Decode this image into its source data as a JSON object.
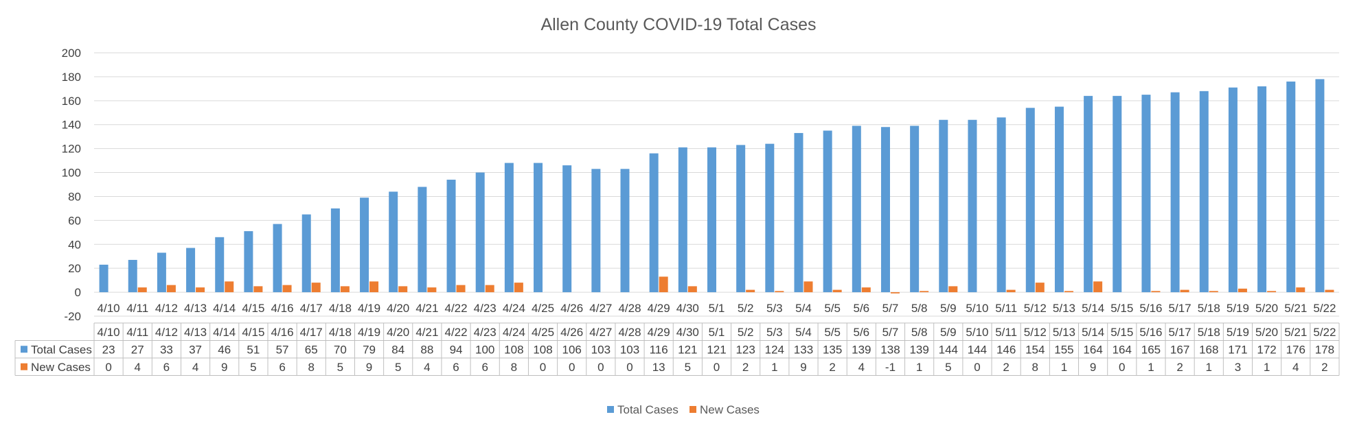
{
  "chart_data": {
    "type": "bar",
    "title": "Allen County COVID-19 Total Cases",
    "xlabel": "",
    "ylabel": "",
    "ylim": [
      -20,
      200
    ],
    "yticks": [
      -20,
      0,
      20,
      40,
      60,
      80,
      100,
      120,
      140,
      160,
      180,
      200
    ],
    "grid": true,
    "legend": "bottom",
    "data_table": true,
    "categories": [
      "4/10",
      "4/11",
      "4/12",
      "4/13",
      "4/14",
      "4/15",
      "4/16",
      "4/17",
      "4/18",
      "4/19",
      "4/20",
      "4/21",
      "4/22",
      "4/23",
      "4/24",
      "4/25",
      "4/26",
      "4/27",
      "4/28",
      "4/29",
      "4/30",
      "5/1",
      "5/2",
      "5/3",
      "5/4",
      "5/5",
      "5/6",
      "5/7",
      "5/8",
      "5/9",
      "5/10",
      "5/11",
      "5/12",
      "5/13",
      "5/14",
      "5/15",
      "5/16",
      "5/17",
      "5/18",
      "5/19",
      "5/20",
      "5/21",
      "5/22"
    ],
    "series": [
      {
        "name": "Total Cases",
        "color": "#5b9bd5",
        "values": [
          23,
          27,
          33,
          37,
          46,
          51,
          57,
          65,
          70,
          79,
          84,
          88,
          94,
          100,
          108,
          108,
          106,
          103,
          103,
          116,
          121,
          121,
          123,
          124,
          133,
          135,
          139,
          138,
          139,
          144,
          144,
          146,
          154,
          155,
          164,
          164,
          165,
          167,
          168,
          171,
          172,
          176,
          178
        ]
      },
      {
        "name": "New Cases",
        "color": "#ed7d31",
        "values": [
          0,
          4,
          6,
          4,
          9,
          5,
          6,
          8,
          5,
          9,
          5,
          4,
          6,
          6,
          8,
          0,
          0,
          0,
          0,
          13,
          5,
          0,
          2,
          1,
          9,
          2,
          4,
          -1,
          1,
          5,
          0,
          2,
          8,
          1,
          9,
          0,
          1,
          2,
          1,
          3,
          1,
          4,
          2
        ]
      }
    ]
  }
}
